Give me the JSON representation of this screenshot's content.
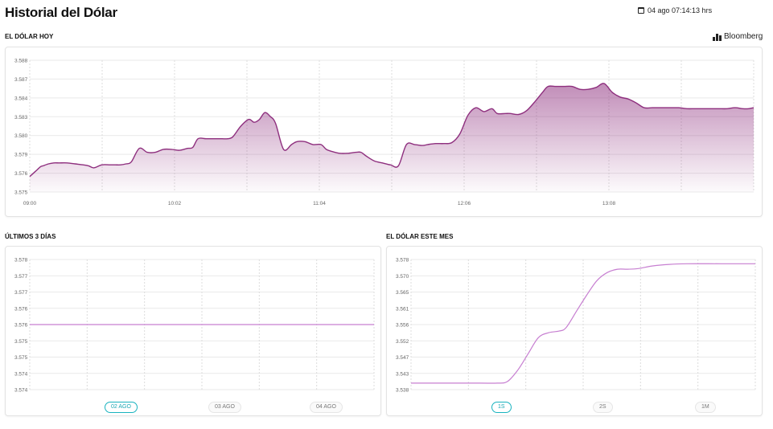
{
  "header": {
    "title": "Historial del Dólar",
    "timestamp": "04 ago 07:14:13 hrs",
    "source": "Bloomberg"
  },
  "colors": {
    "accent": "#8e2f7e",
    "accent_light": "#c77fd1",
    "active_pill": "#19b3bf"
  },
  "chart_data": [
    {
      "id": "today",
      "type": "area",
      "title": "EL DÓLAR HOY",
      "y_ticks": [
        "3.588",
        "3.587",
        "3.584",
        "3.583",
        "3.580",
        "3.579",
        "3.576",
        "3.575"
      ],
      "x_ticks": [
        "09:00",
        "10:02",
        "11:04",
        "12:06",
        "13:08"
      ],
      "x_range_min": [
        0,
        271
      ],
      "x": [
        0,
        2,
        4,
        5,
        7,
        9,
        11,
        14,
        17,
        20,
        22,
        24,
        27,
        30,
        32,
        34,
        36,
        38,
        41,
        44,
        47,
        50,
        53,
        56,
        59,
        61,
        63,
        66,
        69,
        72,
        74,
        76,
        79,
        82,
        84,
        86,
        88,
        90,
        92,
        95,
        98,
        100,
        103,
        106,
        109,
        111,
        113,
        116,
        119,
        122,
        124,
        126,
        129,
        132,
        135,
        138,
        141,
        144,
        147,
        149,
        152,
        155,
        158,
        161,
        164,
        167,
        170,
        173,
        175,
        178,
        180,
        183,
        186,
        189,
        192,
        194,
        197,
        200,
        203,
        206,
        209,
        212,
        215,
        218,
        221,
        224,
        227,
        230,
        233,
        236,
        238,
        240,
        243,
        246,
        249,
        252,
        255,
        258,
        261,
        264,
        267,
        269,
        271
      ],
      "y": [
        3.5763,
        3.5768,
        3.5773,
        3.5774,
        3.5776,
        3.5777,
        3.5777,
        3.5777,
        3.5776,
        3.5775,
        3.5774,
        3.5772,
        3.5775,
        3.5775,
        3.5775,
        3.5775,
        3.5776,
        3.5778,
        3.5792,
        3.5788,
        3.5788,
        3.5791,
        3.5791,
        3.579,
        3.5792,
        3.5793,
        3.5802,
        3.5802,
        3.5802,
        3.5802,
        3.5802,
        3.5804,
        3.5815,
        3.5822,
        3.5819,
        3.5822,
        3.5829,
        3.5825,
        3.5818,
        3.5791,
        3.5796,
        3.5799,
        3.5799,
        3.5796,
        3.5796,
        3.5791,
        3.5789,
        3.5787,
        3.5787,
        3.5788,
        3.5788,
        3.5784,
        3.5779,
        3.5777,
        3.5775,
        3.5774,
        3.5796,
        3.5796,
        3.5795,
        3.5796,
        3.5797,
        3.5797,
        3.5798,
        3.5807,
        3.5826,
        3.5834,
        3.583,
        3.5833,
        3.5828,
        3.5828,
        3.5828,
        3.5827,
        3.5831,
        3.584,
        3.585,
        3.5856,
        3.5856,
        3.5856,
        3.5856,
        3.5853,
        3.5853,
        3.5855,
        3.5859,
        3.585,
        3.5845,
        3.5843,
        3.5839,
        3.5834,
        3.5834,
        3.5834,
        3.5834,
        3.5834,
        3.5834,
        3.5833,
        3.5833,
        3.5833,
        3.5833,
        3.5833,
        3.5833,
        3.5834,
        3.5833,
        3.5833,
        3.5834
      ]
    },
    {
      "id": "last3days",
      "type": "line",
      "title": "ÚLTIMOS 3 DÍAS",
      "y_ticks": [
        "3.578",
        "3.577",
        "3.577",
        "3.576",
        "3.576",
        "3.575",
        "3.575",
        "3.574",
        "3.574"
      ],
      "x_ticks": [
        "02 AGO",
        "03 AGO",
        "04 AGO"
      ],
      "x": [
        0,
        1
      ],
      "y": [
        3.576,
        3.576
      ]
    },
    {
      "id": "month",
      "type": "line",
      "title": "EL DÓLAR ESTE MES",
      "y_ticks": [
        "3.578",
        "3.570",
        "3.565",
        "3.561",
        "3.556",
        "3.552",
        "3.547",
        "3.543",
        "3.538"
      ],
      "x_ticks": [
        "1S",
        "2S",
        "1M"
      ],
      "x": [
        0,
        0.1,
        0.2,
        0.25,
        0.28,
        0.31,
        0.34,
        0.37,
        0.4,
        0.43,
        0.45,
        0.48,
        0.51,
        0.54,
        0.57,
        0.6,
        0.63,
        0.66,
        0.7,
        0.75,
        0.8,
        0.9,
        1.0
      ],
      "y": [
        3.54,
        3.54,
        3.54,
        3.54,
        3.5405,
        3.544,
        3.549,
        3.554,
        3.5555,
        3.556,
        3.557,
        3.562,
        3.567,
        3.5715,
        3.574,
        3.575,
        3.575,
        3.5752,
        3.576,
        3.5765,
        3.5767,
        3.5767,
        3.5767
      ]
    }
  ],
  "tabs_3days": [
    "02 AGO",
    "03 AGO",
    "04 AGO"
  ],
  "tabs_month": [
    "1S",
    "2S",
    "1M"
  ]
}
